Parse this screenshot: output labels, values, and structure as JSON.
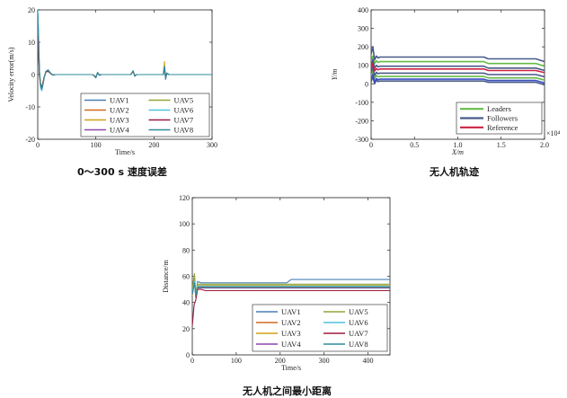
{
  "captions": {
    "velocity": "0～300 s 速度误差",
    "trajectory": "无人机轨迹",
    "distance": "无人机之间最小距离"
  },
  "chart_data": [
    {
      "id": "velocity",
      "type": "line",
      "title": "0～300 s 速度误差",
      "xlabel": "Time/s",
      "ylabel": "Velocity error(m/s)",
      "xlim": [
        0,
        300
      ],
      "ylim": [
        -20,
        20
      ],
      "xticks": [
        0,
        100,
        200,
        300
      ],
      "yticks": [
        -20,
        -10,
        0,
        10,
        20
      ],
      "legend_position": "bottom-right",
      "legend_columns": 2,
      "series": [
        {
          "name": "UAV1",
          "color": "#4a7fb5",
          "x": [
            0,
            1,
            2,
            3,
            5,
            7,
            9,
            11,
            14,
            18,
            22,
            26,
            30,
            40,
            60,
            95,
            100,
            103,
            106,
            110,
            120,
            160,
            164,
            167,
            170,
            180,
            216,
            218,
            220,
            222,
            226,
            240,
            300
          ],
          "y": [
            20,
            15,
            8,
            0,
            -4,
            -5,
            -3,
            -1,
            1,
            1.5,
            0.5,
            -0.2,
            0,
            0,
            0,
            0,
            -1,
            0.7,
            -0.2,
            0,
            0,
            0,
            1.2,
            -0.5,
            0,
            0,
            0,
            2.8,
            -1.5,
            0.5,
            0,
            0,
            0
          ]
        },
        {
          "name": "UAV2",
          "color": "#d2691e",
          "x": [
            0,
            1,
            2,
            3,
            5,
            7,
            9,
            11,
            14,
            18,
            22,
            26,
            30,
            40,
            60,
            95,
            100,
            103,
            106,
            110,
            120,
            160,
            164,
            167,
            170,
            180,
            216,
            218,
            220,
            222,
            226,
            240,
            300
          ],
          "y": [
            18,
            13,
            7,
            1,
            -3,
            -4.5,
            -3,
            -1,
            1,
            1.2,
            0.4,
            -0.1,
            0,
            0,
            0,
            0,
            -0.9,
            0.6,
            -0.2,
            0,
            0,
            0,
            1,
            -0.4,
            0,
            0,
            0,
            2.2,
            -1.2,
            0.4,
            0,
            0,
            0
          ]
        },
        {
          "name": "UAV3",
          "color": "#d4a017",
          "x": [
            0,
            1,
            2,
            3,
            5,
            7,
            9,
            11,
            14,
            18,
            22,
            26,
            30,
            40,
            60,
            95,
            100,
            103,
            106,
            110,
            120,
            160,
            164,
            167,
            170,
            180,
            216,
            218,
            220,
            222,
            226,
            240,
            300
          ],
          "y": [
            16,
            12,
            6,
            1,
            -3,
            -4,
            -2.5,
            -0.8,
            0.8,
            1,
            0.3,
            -0.1,
            0,
            0,
            0,
            0,
            -0.8,
            0.5,
            -0.1,
            0,
            0,
            0,
            1,
            -0.4,
            0,
            0,
            0,
            4,
            -1,
            0.3,
            0,
            0,
            0
          ]
        },
        {
          "name": "UAV4",
          "color": "#8e44ad",
          "x": [
            0,
            1,
            2,
            3,
            5,
            7,
            9,
            11,
            14,
            18,
            22,
            26,
            30,
            40,
            60,
            95,
            100,
            103,
            106,
            110,
            120,
            160,
            164,
            167,
            170,
            180,
            216,
            218,
            220,
            222,
            226,
            240,
            300
          ],
          "y": [
            15,
            10,
            5,
            0,
            -3.5,
            -4.5,
            -3,
            -1,
            0.9,
            1.1,
            0.4,
            -0.1,
            0,
            0,
            0,
            0,
            -1,
            0.6,
            -0.2,
            0,
            0,
            0,
            1.1,
            -0.5,
            0,
            0,
            0,
            2.5,
            -1.3,
            0.4,
            0,
            0,
            0
          ]
        },
        {
          "name": "UAV5",
          "color": "#8fa63a",
          "x": [
            0,
            1,
            2,
            3,
            5,
            7,
            9,
            11,
            14,
            18,
            22,
            26,
            30,
            40,
            60,
            95,
            100,
            103,
            106,
            110,
            120,
            160,
            164,
            167,
            170,
            180,
            216,
            218,
            220,
            222,
            226,
            240,
            300
          ],
          "y": [
            14,
            10,
            5,
            0,
            -3,
            -4,
            -2.5,
            -0.8,
            0.8,
            1,
            0.3,
            -0.1,
            0,
            0,
            0,
            0,
            -0.8,
            0.5,
            -0.1,
            0,
            0,
            0,
            1,
            -0.4,
            0,
            0,
            0,
            2,
            -1,
            0.3,
            0,
            0,
            0
          ]
        },
        {
          "name": "UAV6",
          "color": "#4fc3dd",
          "x": [
            0,
            1,
            2,
            3,
            5,
            7,
            9,
            11,
            14,
            18,
            22,
            26,
            30,
            40,
            60,
            95,
            100,
            103,
            106,
            110,
            120,
            160,
            164,
            167,
            170,
            180,
            216,
            218,
            220,
            222,
            226,
            240,
            300
          ],
          "y": [
            20,
            14,
            7,
            0,
            -4,
            -5,
            -3,
            -1,
            1,
            1.4,
            0.5,
            -0.2,
            0,
            0,
            0,
            0,
            -1,
            0.7,
            -0.2,
            0,
            0,
            0,
            1.2,
            -0.5,
            0,
            0,
            0,
            2.6,
            -1.4,
            0.5,
            0,
            0,
            0
          ]
        },
        {
          "name": "UAV7",
          "color": "#9b1b3a",
          "x": [
            0,
            1,
            2,
            3,
            5,
            7,
            9,
            11,
            14,
            18,
            22,
            26,
            30,
            40,
            60,
            95,
            100,
            103,
            106,
            110,
            120,
            160,
            164,
            167,
            170,
            180,
            216,
            218,
            220,
            222,
            226,
            240,
            300
          ],
          "y": [
            12,
            9,
            4,
            0,
            -3,
            -4,
            -2.5,
            -0.8,
            0.8,
            1,
            0.3,
            -0.1,
            0,
            0,
            0,
            0,
            -0.8,
            0.5,
            -0.1,
            0,
            0,
            0,
            1,
            -0.4,
            0,
            0,
            0,
            2,
            -1,
            0.3,
            0,
            0,
            0
          ]
        },
        {
          "name": "UAV8",
          "color": "#2e8b9a",
          "x": [
            0,
            1,
            2,
            3,
            5,
            7,
            9,
            11,
            14,
            18,
            22,
            26,
            30,
            40,
            60,
            95,
            100,
            103,
            106,
            110,
            120,
            160,
            164,
            167,
            170,
            180,
            216,
            218,
            220,
            222,
            226,
            240,
            300
          ],
          "y": [
            19,
            14,
            7,
            1,
            -3.5,
            -4.5,
            -3,
            -1,
            1,
            1.3,
            0.4,
            -0.1,
            0,
            0,
            0,
            0,
            -1,
            0.6,
            -0.2,
            0,
            0,
            0,
            1.1,
            -0.5,
            0,
            0,
            0,
            2.4,
            -1.3,
            0.4,
            0,
            0,
            0
          ]
        }
      ]
    },
    {
      "id": "trajectory",
      "type": "line",
      "title": "无人机轨迹",
      "xlabel": "X/m",
      "ylabel": "Y/m",
      "x_multiplier": "×10⁴",
      "xlim": [
        0,
        2.0
      ],
      "ylim": [
        -300,
        400
      ],
      "xticks": [
        0,
        0.5,
        1.0,
        1.5,
        2.0
      ],
      "xtick_labels": [
        "0",
        "0.5",
        "1.0",
        "1.5",
        "2.0"
      ],
      "yticks": [
        -300,
        -200,
        -100,
        0,
        100,
        200,
        300,
        400
      ],
      "legend_position": "bottom-right",
      "legend": [
        {
          "name": "Leaders",
          "color": "#66bb44"
        },
        {
          "name": "Followers",
          "color": "#4a5a8a"
        },
        {
          "name": "Reference",
          "color": "#cc2244"
        }
      ],
      "series": [
        {
          "name": "Leaders",
          "color": "#66bb44",
          "x": [
            0,
            0.02,
            0.04,
            0.06,
            0.08,
            0.1,
            0.15,
            1.3,
            1.35,
            1.9,
            2.0
          ],
          "y": [
            120,
            150,
            110,
            125,
            115,
            120,
            120,
            120,
            110,
            110,
            95
          ]
        },
        {
          "name": "Leaders",
          "color": "#66bb44",
          "x": [
            0,
            0.02,
            0.04,
            0.06,
            0.08,
            0.1,
            0.15,
            1.3,
            1.35,
            1.9,
            2.0
          ],
          "y": [
            40,
            70,
            30,
            45,
            38,
            40,
            40,
            40,
            32,
            32,
            20
          ]
        },
        {
          "name": "Followers",
          "color": "#4a5a8a",
          "x": [
            0,
            0.02,
            0.04,
            0.06,
            0.08,
            0.1,
            0.15,
            1.3,
            1.35,
            1.9,
            2.0
          ],
          "y": [
            160,
            200,
            130,
            150,
            140,
            145,
            145,
            145,
            135,
            135,
            120
          ]
        },
        {
          "name": "Followers",
          "color": "#4a5a8a",
          "x": [
            0,
            0.02,
            0.04,
            0.06,
            0.08,
            0.1,
            0.15,
            1.3,
            1.35,
            1.9,
            2.0
          ],
          "y": [
            100,
            130,
            85,
            100,
            92,
            95,
            95,
            95,
            85,
            85,
            72
          ]
        },
        {
          "name": "Followers",
          "color": "#4a5a8a",
          "x": [
            0,
            0.02,
            0.04,
            0.06,
            0.08,
            0.1,
            0.15,
            1.3,
            1.35,
            1.9,
            2.0
          ],
          "y": [
            60,
            90,
            45,
            62,
            55,
            58,
            58,
            58,
            50,
            50,
            38
          ]
        },
        {
          "name": "Followers",
          "color": "#4a5a8a",
          "x": [
            0,
            0.02,
            0.04,
            0.06,
            0.08,
            0.1,
            0.15,
            1.3,
            1.35,
            1.9,
            2.0
          ],
          "y": [
            10,
            40,
            0,
            20,
            12,
            15,
            15,
            15,
            8,
            8,
            -5
          ]
        },
        {
          "name": "Reference",
          "color": "#cc2244",
          "x": [
            0,
            0.02,
            0.04,
            0.06,
            0.08,
            0.1,
            0.15,
            1.3,
            1.35,
            1.9,
            2.0
          ],
          "y": [
            80,
            110,
            70,
            82,
            76,
            80,
            80,
            80,
            72,
            72,
            60
          ]
        },
        {
          "name": "Followers",
          "color": "#3a4fbf",
          "x": [
            0,
            0.02,
            0.04,
            0.06,
            0.08,
            0.1,
            0.15,
            1.3,
            1.35,
            1.9,
            2.0
          ],
          "y": [
            20,
            50,
            10,
            28,
            22,
            25,
            25,
            25,
            18,
            18,
            5
          ]
        }
      ]
    },
    {
      "id": "distance",
      "type": "line",
      "title": "无人机之间最小距离",
      "xlabel": "Time/s",
      "ylabel": "Distance/m",
      "xlim": [
        0,
        450
      ],
      "ylim": [
        0,
        120
      ],
      "xticks": [
        0,
        100,
        200,
        300,
        400
      ],
      "yticks": [
        0,
        20,
        40,
        60,
        80,
        100,
        120
      ],
      "legend_position": "bottom-right",
      "legend_columns": 2,
      "series": [
        {
          "name": "UAV1",
          "color": "#4a7fb5",
          "x": [
            0,
            5,
            8,
            12,
            20,
            30,
            215,
            225,
            450
          ],
          "y": [
            50,
            60,
            45,
            56,
            55,
            55,
            55,
            57.5,
            57.5
          ]
        },
        {
          "name": "UAV2",
          "color": "#d2691e",
          "x": [
            0,
            5,
            8,
            12,
            20,
            30,
            450
          ],
          "y": [
            48,
            57,
            44,
            52,
            52,
            52,
            52
          ]
        },
        {
          "name": "UAV3",
          "color": "#d4a017",
          "x": [
            0,
            5,
            8,
            12,
            20,
            30,
            450
          ],
          "y": [
            45,
            58,
            46,
            53,
            53,
            53,
            53
          ]
        },
        {
          "name": "UAV4",
          "color": "#8e44ad",
          "x": [
            0,
            5,
            8,
            12,
            20,
            30,
            450
          ],
          "y": [
            46,
            55,
            44,
            51,
            51,
            51,
            51
          ]
        },
        {
          "name": "UAV5",
          "color": "#8fa63a",
          "x": [
            0,
            5,
            8,
            12,
            20,
            30,
            450
          ],
          "y": [
            50,
            62,
            48,
            54,
            54,
            54,
            54
          ]
        },
        {
          "name": "UAV6",
          "color": "#4fc3dd",
          "x": [
            0,
            5,
            8,
            12,
            20,
            30,
            450
          ],
          "y": [
            47,
            56,
            45,
            52.5,
            52.5,
            52.5,
            52.5
          ]
        },
        {
          "name": "UAV7",
          "color": "#9b1b3a",
          "x": [
            0,
            4,
            8,
            12,
            20,
            30,
            450
          ],
          "y": [
            22,
            38,
            42,
            50,
            50,
            49,
            49
          ]
        },
        {
          "name": "UAV8",
          "color": "#2e8b9a",
          "x": [
            0,
            5,
            8,
            12,
            20,
            30,
            450
          ],
          "y": [
            46,
            55,
            45,
            51.5,
            51.5,
            51.5,
            51.5
          ]
        }
      ]
    }
  ]
}
